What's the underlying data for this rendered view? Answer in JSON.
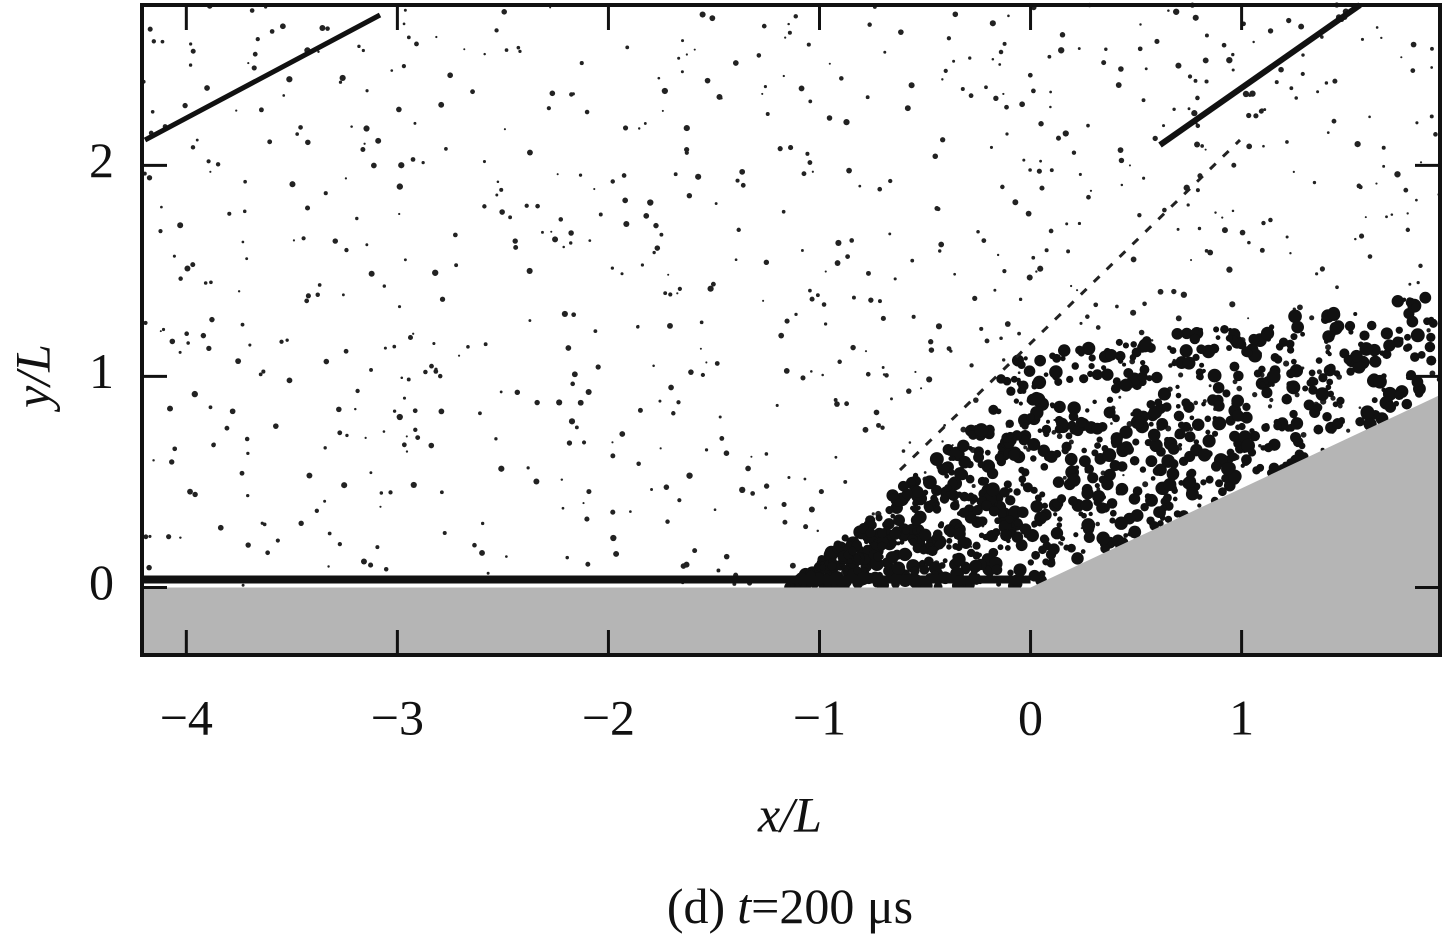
{
  "chart_data": {
    "type": "image",
    "caption_parts": [
      "(d)",
      "t",
      "=200 μs"
    ],
    "xlabel": "x/L",
    "ylabel": "y/L",
    "xlim": [
      -4.21,
      1.94
    ],
    "ylim": [
      -0.32,
      2.76
    ],
    "xticks": [
      {
        "value": -4,
        "label": "−4"
      },
      {
        "value": -3,
        "label": "−3"
      },
      {
        "value": -2,
        "label": "−2"
      },
      {
        "value": -1,
        "label": "−1"
      },
      0,
      1
    ],
    "yticks": [
      0,
      1,
      2
    ]
  }
}
